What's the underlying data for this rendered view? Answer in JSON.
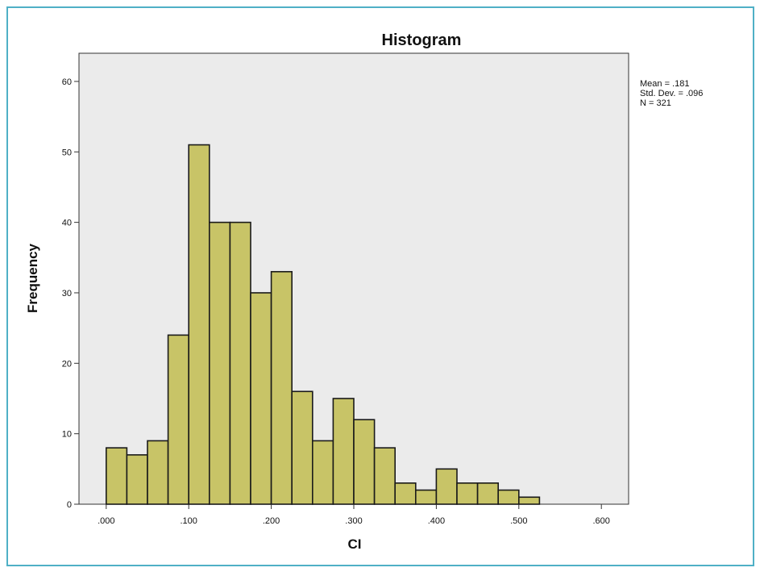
{
  "chart_data": {
    "type": "bar",
    "title": "Histogram",
    "xlabel": "CI",
    "ylabel": "Frequency",
    "xlim": [
      -0.033,
      0.633
    ],
    "ylim": [
      0,
      64
    ],
    "x_ticks": [
      ".000",
      ".100",
      ".200",
      ".300",
      ".400",
      ".500",
      ".600"
    ],
    "y_ticks": [
      "0",
      "10",
      "20",
      "30",
      "40",
      "50",
      "60"
    ],
    "bin_width": 0.025,
    "bins": [
      {
        "start": 0.0,
        "value": 8
      },
      {
        "start": 0.025,
        "value": 7
      },
      {
        "start": 0.05,
        "value": 9
      },
      {
        "start": 0.075,
        "value": 24
      },
      {
        "start": 0.1,
        "value": 51
      },
      {
        "start": 0.125,
        "value": 40
      },
      {
        "start": 0.15,
        "value": 40
      },
      {
        "start": 0.175,
        "value": 30
      },
      {
        "start": 0.2,
        "value": 33
      },
      {
        "start": 0.225,
        "value": 16
      },
      {
        "start": 0.25,
        "value": 9
      },
      {
        "start": 0.275,
        "value": 15
      },
      {
        "start": 0.3,
        "value": 12
      },
      {
        "start": 0.325,
        "value": 8
      },
      {
        "start": 0.35,
        "value": 3
      },
      {
        "start": 0.375,
        "value": 2
      },
      {
        "start": 0.4,
        "value": 5
      },
      {
        "start": 0.425,
        "value": 3
      },
      {
        "start": 0.45,
        "value": 3
      },
      {
        "start": 0.475,
        "value": 2
      },
      {
        "start": 0.5,
        "value": 1
      }
    ],
    "stats": [
      "Mean = .181",
      "Std. Dev. = .096",
      "N = 321"
    ],
    "grid": false,
    "colors": {
      "bar": "#c8c467",
      "bar_edge": "#1a1a1a",
      "plot_bg": "#ebebeb",
      "frame": "#4fb0c6"
    }
  }
}
